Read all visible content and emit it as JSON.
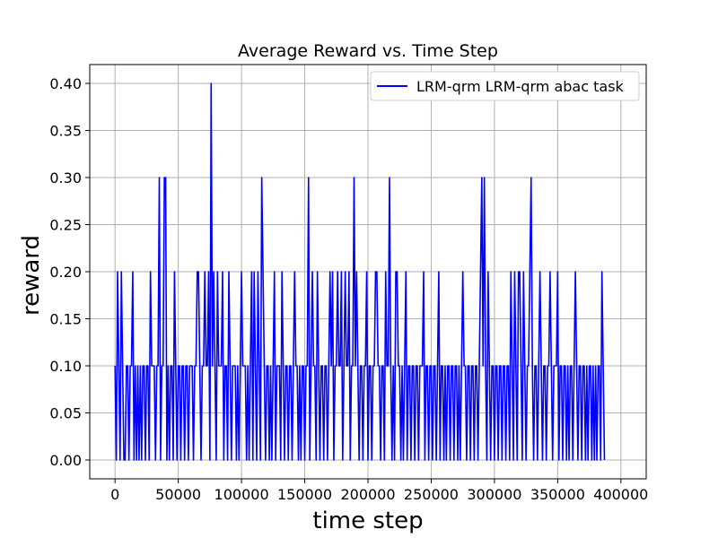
{
  "chart_data": {
    "type": "line",
    "title": "Average Reward vs. Time Step",
    "xlabel": "time step",
    "ylabel": "reward",
    "xlim": [
      -20000,
      420000
    ],
    "ylim": [
      -0.02,
      0.42
    ],
    "xticks": [
      0,
      50000,
      100000,
      150000,
      200000,
      250000,
      300000,
      350000,
      400000
    ],
    "yticks": [
      0.0,
      0.05,
      0.1,
      0.15,
      0.2,
      0.25,
      0.3,
      0.35,
      0.4
    ],
    "xtick_labels": [
      "0",
      "50000",
      "100000",
      "150000",
      "200000",
      "250000",
      "300000",
      "350000",
      "400000"
    ],
    "ytick_labels": [
      "0.00",
      "0.05",
      "0.10",
      "0.15",
      "0.20",
      "0.25",
      "0.30",
      "0.35",
      "0.40"
    ],
    "grid": true,
    "legend_position": "top-right",
    "series": [
      {
        "name": "LRM-qrm LRM-qrm abac task",
        "color": "#0000ff",
        "x_start": 0,
        "x_step": 1000,
        "values": [
          0.1,
          0,
          0.2,
          0.1,
          0,
          0.2,
          0.1,
          0,
          0,
          0.1,
          0.1,
          0,
          0.1,
          0.1,
          0.2,
          0,
          0.1,
          0,
          0.1,
          0,
          0.1,
          0,
          0.1,
          0.1,
          0,
          0.1,
          0.1,
          0,
          0.2,
          0.1,
          0.1,
          0.1,
          0,
          0.1,
          0.1,
          0.3,
          0,
          0.1,
          0.1,
          0.3,
          0.3,
          0,
          0.1,
          0,
          0.1,
          0.1,
          0,
          0.2,
          0.1,
          0,
          0.1,
          0.1,
          0,
          0.1,
          0.1,
          0,
          0.1,
          0.1,
          0,
          0.1,
          0.1,
          0.1,
          0,
          0.1,
          0.1,
          0.2,
          0.2,
          0.1,
          0,
          0.1,
          0.1,
          0.2,
          0.1,
          0.1,
          0.2,
          0,
          0.4,
          0.1,
          0.2,
          0.1,
          0,
          0.2,
          0.1,
          0.1,
          0.1,
          0.2,
          0,
          0.1,
          0.1,
          0,
          0.2,
          0.1,
          0,
          0.1,
          0.1,
          0.1,
          0,
          0.1,
          0,
          0.1,
          0.2,
          0.1,
          0.1,
          0.1,
          0,
          0.1,
          0,
          0.1,
          0.2,
          0,
          0.2,
          0.1,
          0,
          0.2,
          0.1,
          0,
          0.3,
          0.2,
          0.1,
          0,
          0.1,
          0.1,
          0,
          0.1,
          0,
          0.1,
          0.2,
          0,
          0.1,
          0.1,
          0.1,
          0,
          0.2,
          0.1,
          0,
          0.1,
          0.1,
          0,
          0.1,
          0.1,
          0,
          0.1,
          0.2,
          0.1,
          0.1,
          0,
          0.1,
          0,
          0.1,
          0.1,
          0,
          0.1,
          0.1,
          0.3,
          0,
          0.1,
          0.2,
          0.1,
          0.1,
          0,
          0.2,
          0.1,
          0,
          0.1,
          0.1,
          0,
          0.1,
          0.1,
          0,
          0.1,
          0.2,
          0.1,
          0.2,
          0,
          0.1,
          0.1,
          0.2,
          0.1,
          0.1,
          0.2,
          0,
          0.1,
          0.2,
          0.1,
          0.1,
          0.2,
          0,
          0.1,
          0.1,
          0.3,
          0.1,
          0.2,
          0.1,
          0,
          0.1,
          0.1,
          0,
          0.1,
          0.1,
          0.2,
          0,
          0.1,
          0.1,
          0,
          0.1,
          0.1,
          0.2,
          0.2,
          0.1,
          0.1,
          0,
          0.1,
          0.1,
          0,
          0.2,
          0.1,
          0.1,
          0.3,
          0.1,
          0,
          0.1,
          0,
          0.2,
          0.2,
          0.1,
          0.1,
          0,
          0.1,
          0,
          0.1,
          0.2,
          0,
          0.1,
          0.1,
          0,
          0.1,
          0.1,
          0,
          0.1,
          0.1,
          0,
          0.1,
          0.1,
          0.1,
          0.2,
          0,
          0.1,
          0.1,
          0,
          0.1,
          0.1,
          0,
          0.1,
          0.1,
          0,
          0.1,
          0.2,
          0,
          0.1,
          0.1,
          0,
          0.1,
          0,
          0.1,
          0.1,
          0,
          0.1,
          0.1,
          0,
          0.1,
          0.1,
          0,
          0.1,
          0,
          0.1,
          0.2,
          0.1,
          0.1,
          0,
          0.1,
          0.1,
          0,
          0.1,
          0.1,
          0,
          0.1,
          0.1,
          0,
          0.1,
          0.2,
          0.3,
          0.1,
          0.3,
          0.1,
          0,
          0.2,
          0.1,
          0,
          0.1,
          0.1,
          0,
          0.1,
          0.1,
          0,
          0.1,
          0.1,
          0,
          0.1,
          0.1,
          0,
          0.1,
          0.1,
          0,
          0.2,
          0.1,
          0,
          0.2,
          0.1,
          0,
          0.2,
          0.2,
          0.1,
          0,
          0.2,
          0.1,
          0,
          0.1,
          0.1,
          0.2,
          0.3,
          0.1,
          0,
          0.1,
          0.1,
          0,
          0.1,
          0.2,
          0.1,
          0,
          0.1,
          0.1,
          0,
          0.1,
          0.1,
          0.2,
          0.1,
          0,
          0.1,
          0.1,
          0.1,
          0.2,
          0,
          0.1,
          0.1,
          0,
          0.1,
          0.1,
          0,
          0.1,
          0,
          0.1,
          0.1,
          0,
          0.1,
          0.2,
          0.1,
          0,
          0.1,
          0.1,
          0,
          0.1,
          0.1,
          0,
          0.1,
          0,
          0.1,
          0.1,
          0,
          0.1,
          0,
          0.1,
          0,
          0.1,
          0.1,
          0,
          0.2,
          0.1,
          0
        ]
      }
    ]
  }
}
